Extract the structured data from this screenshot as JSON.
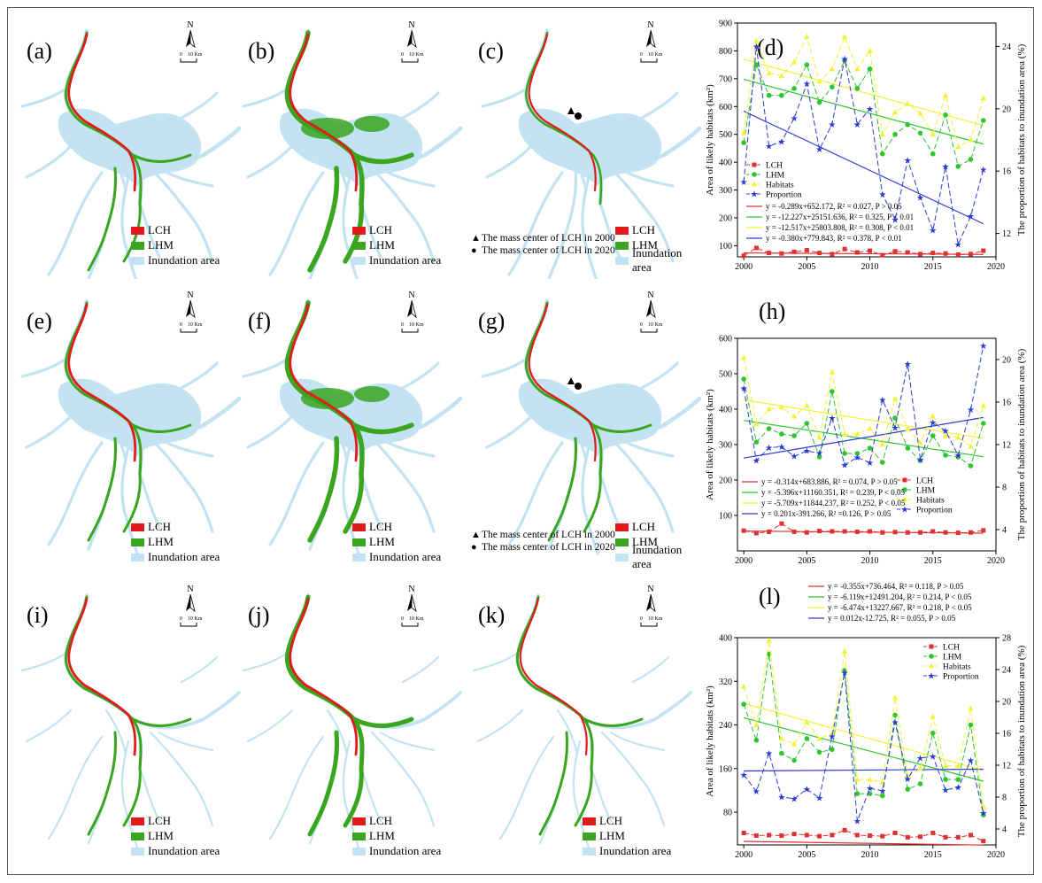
{
  "colors": {
    "lch": "#e31a1c",
    "lhm": "#3aa51f",
    "inundation": "#c3e3f3",
    "habitats": "#f2f23a",
    "proportion": "#2b3bd1",
    "lch_line": "#e03030",
    "lhm_line": "#2fc52f"
  },
  "map_legend": {
    "lch": "LCH",
    "lhm": "LHM",
    "inundation": "Inundation area",
    "mc_2000": "The mass center of LCH in 2000",
    "mc_2020": "The mass center of LCH in 2020"
  },
  "north_arrow": {
    "letter": "N",
    "scale_zero": "0",
    "scale_text": "10 Km"
  },
  "panels": [
    {
      "label": "(a)",
      "variant": "lch"
    },
    {
      "label": "(b)",
      "variant": "lhm"
    },
    {
      "label": "(c)",
      "variant": "center"
    },
    {
      "label": "(e)",
      "variant": "lch"
    },
    {
      "label": "(f)",
      "variant": "lhm"
    },
    {
      "label": "(g)",
      "variant": "center"
    },
    {
      "label": "(i)",
      "variant": "lch"
    },
    {
      "label": "(j)",
      "variant": "lhm"
    },
    {
      "label": "(k)",
      "variant": "thin"
    }
  ],
  "chart_data": [
    {
      "label": "(d)",
      "type": "line",
      "ylabel": "Area of likely habitats (km²)",
      "y2label": "The proportion of habitats to inundation area (%)",
      "xlim": [
        1999.5,
        2020
      ],
      "ylim": [
        60,
        900
      ],
      "y2lim": [
        10.5,
        25.5
      ],
      "xticks": [
        2000,
        2005,
        2010,
        2015,
        2020
      ],
      "yticks": [
        100,
        200,
        300,
        400,
        500,
        600,
        700,
        800,
        900
      ],
      "y2ticks": [
        12,
        16,
        20,
        24
      ],
      "legend_position": "left-middle",
      "x": [
        2000,
        2001,
        2002,
        2003,
        2004,
        2005,
        2006,
        2007,
        2008,
        2009,
        2010,
        2011,
        2012,
        2013,
        2014,
        2015,
        2016,
        2017,
        2018,
        2019
      ],
      "series": [
        {
          "name": "LCH",
          "axis": "left",
          "values": [
            64,
            92,
            74,
            72,
            78,
            84,
            74,
            70,
            88,
            76,
            82,
            66,
            80,
            76,
            70,
            74,
            72,
            68,
            70,
            82
          ]
        },
        {
          "name": "LHM",
          "axis": "left",
          "values": [
            470,
            750,
            640,
            640,
            665,
            750,
            615,
            670,
            765,
            665,
            735,
            430,
            500,
            535,
            505,
            430,
            570,
            385,
            410,
            550
          ]
        },
        {
          "name": "Habitats",
          "axis": "left",
          "values": [
            505,
            835,
            720,
            710,
            760,
            850,
            690,
            735,
            850,
            735,
            800,
            500,
            580,
            610,
            575,
            500,
            640,
            455,
            480,
            630
          ]
        },
        {
          "name": "Proportion",
          "axis": "right",
          "values": [
            15.3,
            24.0,
            17.6,
            17.9,
            19.4,
            21.6,
            17.4,
            19.0,
            23.2,
            19.0,
            20.0,
            14.5,
            12.9,
            16.7,
            14.3,
            12.2,
            16.3,
            11.3,
            13.1,
            16.1
          ]
        }
      ],
      "equations": [
        {
          "series": "LCH",
          "text": "y = -0.289x+652.172, R² = 0.027, P > 0.05",
          "slope": -0.289,
          "intercept": 652.172,
          "axis": "left"
        },
        {
          "series": "LHM",
          "text": "y = -12.227x+25151.636, R² = 0.325, P < 0.01",
          "slope": -12.227,
          "intercept": 25151.636,
          "axis": "left"
        },
        {
          "series": "Habitats",
          "text": "y = -12.517x+25803.808, R² = 0.308, P < 0.01",
          "slope": -12.517,
          "intercept": 25803.808,
          "axis": "left"
        },
        {
          "series": "Proportion",
          "text": "y = -0.380x+779.843, R² = 0.378, P < 0.01",
          "slope": -0.38,
          "intercept": 779.843,
          "axis": "right"
        }
      ]
    },
    {
      "label": "(h)",
      "type": "line",
      "ylabel": "Area of likely habitats (km²)",
      "y2label": "The proportion of habitats to inundation area (%)",
      "xlim": [
        1999.5,
        2020
      ],
      "ylim": [
        0,
        600
      ],
      "y2lim": [
        2,
        22
      ],
      "xticks": [
        2000,
        2005,
        2010,
        2015,
        2020
      ],
      "yticks": [
        100,
        200,
        300,
        400,
        500,
        600
      ],
      "y2ticks": [
        4,
        8,
        12,
        16,
        20
      ],
      "legend_position": "bottom-right",
      "x": [
        2000,
        2001,
        2002,
        2003,
        2004,
        2005,
        2006,
        2007,
        2008,
        2009,
        2010,
        2011,
        2012,
        2013,
        2014,
        2015,
        2016,
        2017,
        2018,
        2019
      ],
      "series": [
        {
          "name": "LCH",
          "axis": "left",
          "values": [
            57,
            50,
            54,
            77,
            54,
            52,
            56,
            55,
            55,
            54,
            55,
            52,
            53,
            52,
            52,
            55,
            52,
            51,
            52,
            58
          ]
        },
        {
          "name": "LHM",
          "axis": "left",
          "values": [
            485,
            307,
            345,
            330,
            325,
            360,
            265,
            450,
            275,
            275,
            290,
            250,
            375,
            290,
            255,
            325,
            270,
            265,
            240,
            360
          ]
        },
        {
          "name": "Habitats",
          "axis": "left",
          "values": [
            545,
            358,
            400,
            405,
            380,
            410,
            320,
            505,
            330,
            330,
            345,
            300,
            430,
            345,
            305,
            380,
            325,
            320,
            295,
            410
          ]
        },
        {
          "name": "Proportion",
          "axis": "right",
          "values": [
            17.3,
            10.5,
            11.7,
            11.8,
            10.9,
            11.4,
            11.2,
            14.5,
            10.1,
            10.8,
            10.3,
            16.2,
            13.6,
            19.6,
            10.6,
            14.1,
            13.3,
            11.0,
            15.3,
            21.3
          ]
        }
      ],
      "equations": [
        {
          "series": "LCH",
          "text": "y = -0.314x+683.886, R² = 0.074, P > 0.05",
          "slope": -0.314,
          "intercept": 683.886,
          "axis": "left"
        },
        {
          "series": "LHM",
          "text": "y = -5.396x+11160.351, R² = 0.239, P < 0.05",
          "slope": -5.396,
          "intercept": 11160.351,
          "axis": "left"
        },
        {
          "series": "Habitats",
          "text": "y = -5.709x+11844.237, R² = 0.252, P < 0.05",
          "slope": -5.709,
          "intercept": 11844.237,
          "axis": "left"
        },
        {
          "series": "Proportion",
          "text": "y = 0.201x-391.266, R² =0.126, P > 0.05",
          "slope": 0.201,
          "intercept": -391.266,
          "axis": "right"
        }
      ]
    },
    {
      "label": "(l)",
      "type": "line",
      "ylabel": "Area of likely habitats (km²)",
      "y2label": "The proportion of habitats to inundation area (%)",
      "xlim": [
        1999.5,
        2020
      ],
      "ylim": [
        20,
        400
      ],
      "y2lim": [
        2,
        28
      ],
      "xticks": [
        2000,
        2005,
        2010,
        2015,
        2020
      ],
      "yticks": [
        80,
        160,
        240,
        320,
        400
      ],
      "y2ticks": [
        4,
        8,
        12,
        16,
        20,
        24,
        28
      ],
      "legend_position": "top-right",
      "x": [
        2000,
        2001,
        2002,
        2003,
        2004,
        2005,
        2006,
        2007,
        2008,
        2009,
        2010,
        2011,
        2012,
        2013,
        2014,
        2015,
        2016,
        2017,
        2018,
        2019
      ],
      "series": [
        {
          "name": "LCH",
          "axis": "left",
          "values": [
            42,
            37,
            38,
            37,
            40,
            38,
            36,
            38,
            47,
            38,
            37,
            36,
            42,
            34,
            35,
            42,
            34,
            34,
            38,
            27
          ]
        },
        {
          "name": "LHM",
          "axis": "left",
          "values": [
            278,
            212,
            370,
            188,
            175,
            215,
            190,
            195,
            340,
            114,
            114,
            110,
            258,
            122,
            132,
            225,
            140,
            140,
            240,
            75
          ]
        },
        {
          "name": "Habitats",
          "axis": "left",
          "values": [
            310,
            240,
            395,
            215,
            205,
            245,
            215,
            225,
            375,
            140,
            140,
            135,
            290,
            145,
            160,
            255,
            165,
            165,
            270,
            90
          ]
        },
        {
          "name": "Proportion",
          "axis": "right",
          "values": [
            10.8,
            8.7,
            13.5,
            8.0,
            7.8,
            9.0,
            7.9,
            15.6,
            23.6,
            5.0,
            9.1,
            8.8,
            17.4,
            10.3,
            12.9,
            13.1,
            8.9,
            9.2,
            12.6,
            6.0
          ]
        }
      ],
      "equations": [
        {
          "series": "LCH",
          "text": "y = -0.355x+736.464, R² = 0.118, P > 0.05",
          "slope": -0.355,
          "intercept": 736.464,
          "axis": "left"
        },
        {
          "series": "LHM",
          "text": "y = -6.119x+12491.204, R² = 0.214, P < 0.05",
          "slope": -6.119,
          "intercept": 12491.204,
          "axis": "left"
        },
        {
          "series": "Habitats",
          "text": "y = -6.474x+13227.667, R² = 0.218, P < 0.05",
          "slope": -6.474,
          "intercept": 13227.667,
          "axis": "left"
        },
        {
          "series": "Proportion",
          "text": "y = 0.012x-12.725, R² = 0.055, P > 0.05",
          "slope": 0.012,
          "intercept": -12.725,
          "axis": "right"
        }
      ]
    }
  ]
}
